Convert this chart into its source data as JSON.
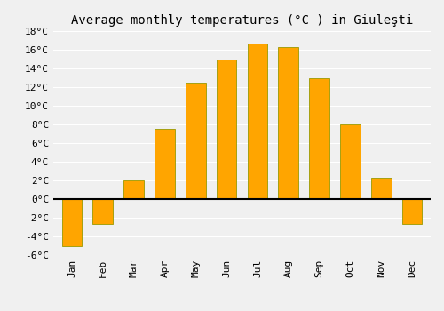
{
  "title": "Average monthly temperatures (°C ) in Giuleşti",
  "months": [
    "Jan",
    "Feb",
    "Mar",
    "Apr",
    "May",
    "Jun",
    "Jul",
    "Aug",
    "Sep",
    "Oct",
    "Nov",
    "Dec"
  ],
  "values": [
    -5.0,
    -2.7,
    2.0,
    7.5,
    12.5,
    15.0,
    16.7,
    16.3,
    13.0,
    8.0,
    2.3,
    -2.7
  ],
  "bar_color": "#FFA500",
  "bar_edge_color": "#999900",
  "ylim": [
    -6,
    18
  ],
  "yticks": [
    -6,
    -4,
    -2,
    0,
    2,
    4,
    6,
    8,
    10,
    12,
    14,
    16,
    18
  ],
  "ytick_labels": [
    "-6°C",
    "-4°C",
    "-2°C",
    "0°C",
    "2°C",
    "4°C",
    "6°C",
    "8°C",
    "10°C",
    "12°C",
    "14°C",
    "16°C",
    "18°C"
  ],
  "bg_color": "#f0f0f0",
  "grid_color": "#ffffff",
  "title_fontsize": 10,
  "tick_fontsize": 8,
  "bar_width": 0.65
}
